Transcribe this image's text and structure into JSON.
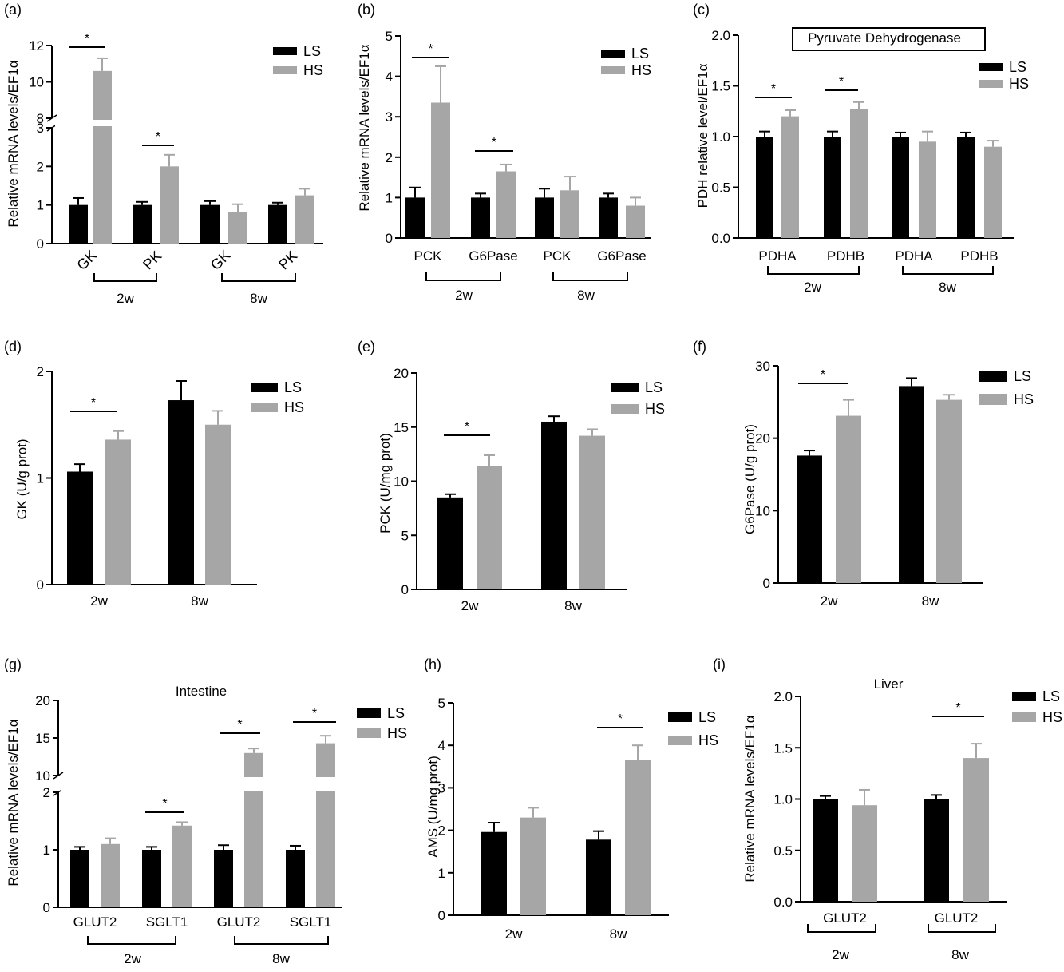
{
  "colors": {
    "LS": "#000000",
    "HS": "#a6a6a6",
    "axis": "#000000"
  },
  "chart_data": [
    {
      "panel": "(a)",
      "type": "bar",
      "ylabel": "Relative mRNA levels/EF1α",
      "categories": [
        "GK",
        "PK",
        "GK",
        "PK"
      ],
      "groups": [
        "2w",
        "8w"
      ],
      "legend": [
        "LS",
        "HS"
      ],
      "legend_position": "top-right",
      "broken_axis": true,
      "lower_ylim": [
        0,
        3
      ],
      "upper_ylim": [
        8,
        12
      ],
      "lower_ticks": [
        "0",
        "1",
        "2",
        "3"
      ],
      "upper_ticks": [
        "8",
        "10",
        "12"
      ],
      "series": [
        {
          "name": "LS",
          "values": [
            1.0,
            1.0,
            1.0,
            1.0
          ],
          "errors": [
            0.18,
            0.08,
            0.1,
            0.06
          ]
        },
        {
          "name": "HS",
          "values": [
            10.6,
            2.0,
            0.82,
            1.25
          ],
          "errors": [
            0.7,
            0.3,
            0.2,
            0.17
          ]
        }
      ],
      "significance": [
        "*",
        "*",
        "",
        ""
      ]
    },
    {
      "panel": "(b)",
      "type": "bar",
      "ylabel": "Relative mRNA levels/EF1α",
      "categories": [
        "PCK",
        "G6Pase",
        "PCK",
        "G6Pase"
      ],
      "groups": [
        "2w",
        "8w"
      ],
      "legend": [
        "LS",
        "HS"
      ],
      "legend_position": "top-right",
      "ylim": [
        0,
        5
      ],
      "ticks": [
        "0",
        "1",
        "2",
        "3",
        "4",
        "5"
      ],
      "series": [
        {
          "name": "LS",
          "values": [
            1.0,
            1.0,
            1.0,
            1.0
          ],
          "errors": [
            0.25,
            0.1,
            0.22,
            0.1
          ]
        },
        {
          "name": "HS",
          "values": [
            3.35,
            1.65,
            1.18,
            0.8
          ],
          "errors": [
            0.9,
            0.17,
            0.34,
            0.2
          ]
        }
      ],
      "significance": [
        "*",
        "*",
        "",
        ""
      ]
    },
    {
      "panel": "(c)",
      "type": "bar",
      "ylabel": "PDH relative level/EF1α",
      "title": "Pyruvate Dehydrogenase",
      "categories": [
        "PDHA",
        "PDHB",
        "PDHA",
        "PDHB"
      ],
      "groups": [
        "2w",
        "8w"
      ],
      "legend": [
        "LS",
        "HS"
      ],
      "legend_position": "top-right",
      "ylim": [
        0,
        2.0
      ],
      "ticks": [
        "0.0",
        "0.5",
        "1.0",
        "1.5",
        "2.0"
      ],
      "series": [
        {
          "name": "LS",
          "values": [
            1.0,
            1.0,
            1.0,
            1.0
          ],
          "errors": [
            0.05,
            0.05,
            0.04,
            0.04
          ]
        },
        {
          "name": "HS",
          "values": [
            1.2,
            1.27,
            0.95,
            0.9
          ],
          "errors": [
            0.06,
            0.07,
            0.1,
            0.06
          ]
        }
      ],
      "significance": [
        "*",
        "*",
        "",
        ""
      ]
    },
    {
      "panel": "(d)",
      "type": "bar",
      "ylabel": "GK (U/g prot)",
      "categories": [
        "2w",
        "8w"
      ],
      "legend": [
        "LS",
        "HS"
      ],
      "legend_position": "top-right",
      "ylim": [
        0,
        2
      ],
      "ticks": [
        "0",
        "1",
        "2"
      ],
      "series": [
        {
          "name": "LS",
          "values": [
            1.06,
            1.73
          ],
          "errors": [
            0.07,
            0.18
          ]
        },
        {
          "name": "HS",
          "values": [
            1.36,
            1.5
          ],
          "errors": [
            0.08,
            0.13
          ]
        }
      ],
      "significance": [
        "*",
        ""
      ]
    },
    {
      "panel": "(e)",
      "type": "bar",
      "ylabel": "PCK (U/mg prot)",
      "categories": [
        "2w",
        "8w"
      ],
      "legend": [
        "LS",
        "HS"
      ],
      "legend_position": "top-right",
      "ylim": [
        0,
        20
      ],
      "ticks": [
        "0",
        "5",
        "10",
        "15",
        "20"
      ],
      "series": [
        {
          "name": "LS",
          "values": [
            8.5,
            15.5
          ],
          "errors": [
            0.3,
            0.5
          ]
        },
        {
          "name": "HS",
          "values": [
            11.4,
            14.2
          ],
          "errors": [
            1.0,
            0.6
          ]
        }
      ],
      "significance": [
        "*",
        ""
      ]
    },
    {
      "panel": "(f)",
      "type": "bar",
      "ylabel": "G6Pase (U/g prot)",
      "categories": [
        "2w",
        "8w"
      ],
      "legend": [
        "LS",
        "HS"
      ],
      "legend_position": "top-right",
      "ylim": [
        0,
        30
      ],
      "ticks": [
        "0",
        "10",
        "20",
        "30"
      ],
      "series": [
        {
          "name": "LS",
          "values": [
            17.6,
            27.2
          ],
          "errors": [
            0.7,
            1.1
          ]
        },
        {
          "name": "HS",
          "values": [
            23.1,
            25.3
          ],
          "errors": [
            2.2,
            0.7
          ]
        }
      ],
      "significance": [
        "*",
        ""
      ]
    },
    {
      "panel": "(g)",
      "type": "bar",
      "ylabel": "Relative mRNA levels/EF1α",
      "title": "Intestine",
      "categories": [
        "GLUT2",
        "SGLT1",
        "GLUT2",
        "SGLT1"
      ],
      "groups": [
        "2w",
        "8w"
      ],
      "legend": [
        "LS",
        "HS"
      ],
      "legend_position": "top-right",
      "broken_axis": true,
      "lower_ylim": [
        0,
        2
      ],
      "upper_ylim": [
        10,
        20
      ],
      "lower_ticks": [
        "0",
        "1",
        "2"
      ],
      "upper_ticks": [
        "10",
        "15",
        "20"
      ],
      "series": [
        {
          "name": "LS",
          "values": [
            1.0,
            1.0,
            1.0,
            1.0
          ],
          "errors": [
            0.05,
            0.05,
            0.08,
            0.07
          ]
        },
        {
          "name": "HS",
          "values": [
            1.1,
            1.42,
            13.0,
            14.3
          ],
          "errors": [
            0.1,
            0.06,
            0.6,
            1.0
          ]
        }
      ],
      "significance": [
        "",
        "*",
        "*",
        "*"
      ]
    },
    {
      "panel": "(h)",
      "type": "bar",
      "ylabel": "AMS (U/mg prot)",
      "categories": [
        "2w",
        "8w"
      ],
      "legend": [
        "LS",
        "HS"
      ],
      "legend_position": "top-right",
      "ylim": [
        0,
        5
      ],
      "ticks": [
        "0",
        "1",
        "2",
        "3",
        "4",
        "5"
      ],
      "series": [
        {
          "name": "LS",
          "values": [
            1.96,
            1.78
          ],
          "errors": [
            0.22,
            0.2
          ]
        },
        {
          "name": "HS",
          "values": [
            2.3,
            3.65
          ],
          "errors": [
            0.23,
            0.35
          ]
        }
      ],
      "significance": [
        "",
        "*"
      ]
    },
    {
      "panel": "(i)",
      "type": "bar",
      "ylabel": "Relative mRNA levels/EF1α",
      "title": "Liver",
      "categories": [
        "GLUT2",
        "GLUT2"
      ],
      "groups": [
        "2w",
        "8w"
      ],
      "legend": [
        "LS",
        "HS"
      ],
      "legend_position": "top-right",
      "ylim": [
        0,
        2.0
      ],
      "ticks": [
        "0.0",
        "0.5",
        "1.0",
        "1.5",
        "2.0"
      ],
      "series": [
        {
          "name": "LS",
          "values": [
            1.0,
            1.0
          ],
          "errors": [
            0.03,
            0.04
          ]
        },
        {
          "name": "HS",
          "values": [
            0.94,
            1.4
          ],
          "errors": [
            0.15,
            0.14
          ]
        }
      ],
      "significance": [
        "",
        "*"
      ]
    }
  ]
}
